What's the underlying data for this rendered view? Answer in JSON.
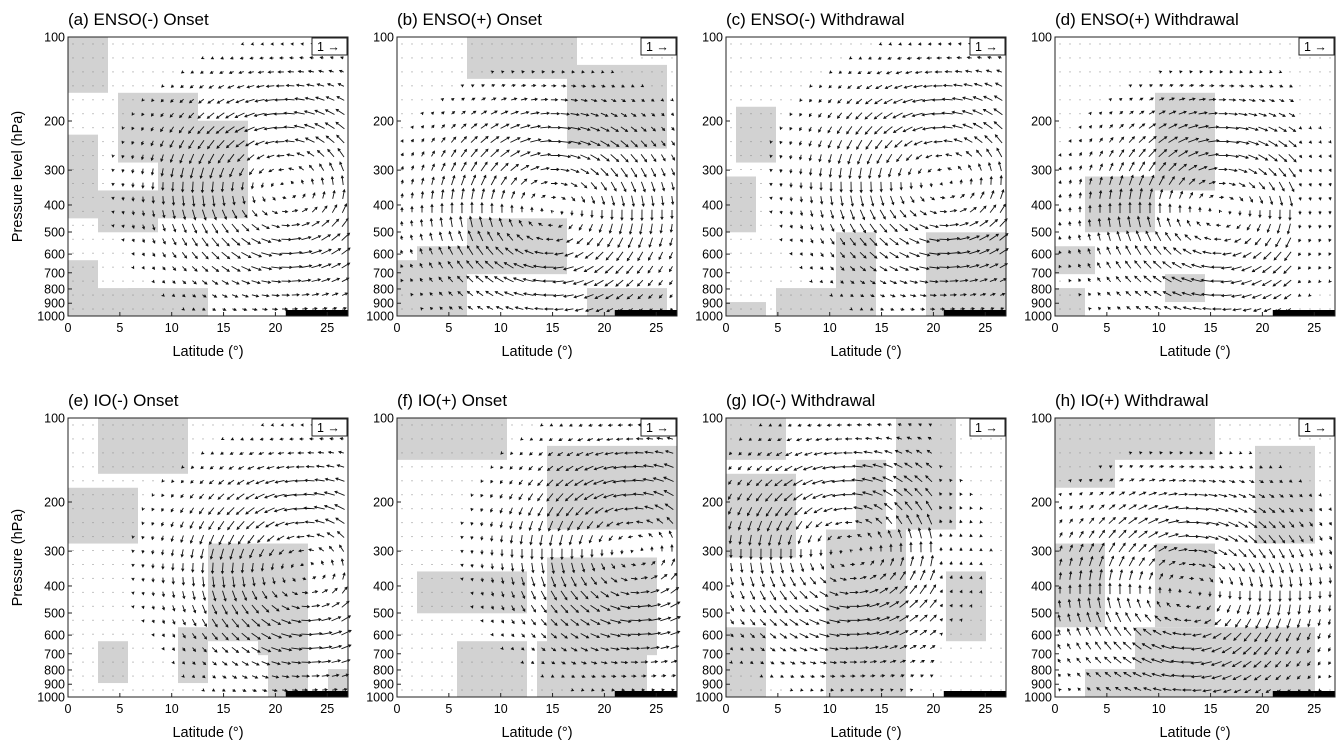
{
  "figure": {
    "x_tick_labels": [
      "0",
      "5",
      "10",
      "15",
      "20",
      "25"
    ],
    "y_tick_labels": [
      "100",
      "200",
      "300",
      "400",
      "500",
      "600",
      "700",
      "800",
      "900",
      "1000"
    ],
    "x_axis_label": "Latitude (°)",
    "y_axis_label": "Pressure level (hPa)",
    "y_axis_label_row2": "Pressure (hPa)",
    "reference_vector_label": "1 →",
    "colors": {
      "shading": "#d2d2d2",
      "vectors": "#111111",
      "land_bar": "#000000"
    }
  },
  "panels": [
    {
      "title": "(a) ENSO(-) Onset"
    },
    {
      "title": "(b) ENSO(+) Onset"
    },
    {
      "title": "(c) ENSO(-) Withdrawal"
    },
    {
      "title": "(d) ENSO(+) Withdrawal"
    },
    {
      "title": "(e) IO(-) Onset"
    },
    {
      "title": "(f) IO(+) Onset"
    },
    {
      "title": "(g) IO(-) Withdrawal"
    },
    {
      "title": "(h) IO(+) Withdrawal"
    }
  ],
  "chart_data": [
    {
      "type": "vector-field",
      "title": "(a) ENSO(-) Onset",
      "xlabel": "Latitude (°)",
      "ylabel": "Pressure level (hPa)",
      "xlim": [
        0,
        27
      ],
      "ylim": [
        1000,
        100
      ],
      "y_scale": "log",
      "xticks": [
        0,
        5,
        10,
        15,
        20,
        25
      ],
      "yticks": [
        100,
        200,
        300,
        400,
        500,
        600,
        700,
        800,
        900,
        1000
      ],
      "reference_vector": 1,
      "land_bar_lat": [
        21,
        27
      ],
      "circulation": {
        "center_lat": 21,
        "center_p": 350,
        "sense": "counterclockwise",
        "max_lat_extent": 27
      },
      "shaded_regions": [
        {
          "lat": [
            0,
            3
          ],
          "p": [
            100,
            150
          ]
        },
        {
          "lat": [
            5,
            12
          ],
          "p": [
            170,
            260
          ]
        },
        {
          "lat": [
            0,
            2
          ],
          "p": [
            250,
            420
          ]
        },
        {
          "lat": [
            3,
            8
          ],
          "p": [
            360,
            460
          ]
        },
        {
          "lat": [
            9,
            17
          ],
          "p": [
            200,
            430
          ]
        },
        {
          "lat": [
            0,
            2
          ],
          "p": [
            700,
            1000
          ]
        },
        {
          "lat": [
            3,
            8
          ],
          "p": [
            820,
            1000
          ]
        },
        {
          "lat": [
            6,
            13
          ],
          "p": [
            840,
            960
          ]
        }
      ]
    },
    {
      "type": "vector-field",
      "title": "(b) ENSO(+) Onset",
      "xlabel": "Latitude (°)",
      "ylabel": "",
      "xlim": [
        0,
        27
      ],
      "ylim": [
        1000,
        100
      ],
      "y_scale": "log",
      "xticks": [
        0,
        5,
        10,
        15,
        20,
        25
      ],
      "yticks": [
        100,
        200,
        300,
        400,
        500,
        600,
        700,
        800,
        900,
        1000
      ],
      "reference_vector": 1,
      "land_bar_lat": [
        21,
        27
      ],
      "circulation": {
        "center_lat": 15,
        "center_p": 420,
        "sense": "clockwise",
        "max_lat_extent": 27
      },
      "shaded_regions": [
        {
          "lat": [
            7,
            17
          ],
          "p": [
            100,
            130
          ]
        },
        {
          "lat": [
            17,
            26
          ],
          "p": [
            130,
            230
          ]
        },
        {
          "lat": [
            7,
            16
          ],
          "p": [
            480,
            700
          ]
        },
        {
          "lat": [
            2,
            6
          ],
          "p": [
            580,
            700
          ]
        },
        {
          "lat": [
            0,
            6
          ],
          "p": [
            700,
            1000
          ]
        },
        {
          "lat": [
            19,
            26
          ],
          "p": [
            800,
            1000
          ]
        }
      ]
    },
    {
      "type": "vector-field",
      "title": "(c) ENSO(-) Withdrawal",
      "xlabel": "Latitude (°)",
      "ylabel": "",
      "xlim": [
        0,
        27
      ],
      "ylim": [
        1000,
        100
      ],
      "y_scale": "log",
      "xticks": [
        0,
        5,
        10,
        15,
        20,
        25
      ],
      "yticks": [
        100,
        200,
        300,
        400,
        500,
        600,
        700,
        800,
        900,
        1000
      ],
      "reference_vector": 1,
      "land_bar_lat": [
        21,
        27
      ],
      "circulation": {
        "center_lat": 21,
        "center_p": 330,
        "sense": "counterclockwise",
        "max_lat_extent": 27
      },
      "shaded_regions": [
        {
          "lat": [
            1,
            4
          ],
          "p": [
            180,
            260
          ]
        },
        {
          "lat": [
            0,
            2
          ],
          "p": [
            350,
            450
          ]
        },
        {
          "lat": [
            11,
            14
          ],
          "p": [
            550,
            900
          ]
        },
        {
          "lat": [
            20,
            27
          ],
          "p": [
            520,
            900
          ]
        },
        {
          "lat": [
            5,
            9
          ],
          "p": [
            880,
            1000
          ]
        },
        {
          "lat": [
            0,
            3
          ],
          "p": [
            920,
            1000
          ]
        },
        {
          "lat": [
            10,
            14
          ],
          "p": [
            880,
            980
          ]
        }
      ]
    },
    {
      "type": "vector-field",
      "title": "(d) ENSO(+) Withdrawal",
      "xlabel": "Latitude (°)",
      "ylabel": "",
      "xlim": [
        0,
        27
      ],
      "ylim": [
        1000,
        100
      ],
      "y_scale": "log",
      "xticks": [
        0,
        5,
        10,
        15,
        20,
        25
      ],
      "yticks": [
        100,
        200,
        300,
        400,
        500,
        600,
        700,
        800,
        900,
        1000
      ],
      "reference_vector": 1,
      "land_bar_lat": [
        21,
        27
      ],
      "circulation": {
        "center_lat": 16,
        "center_p": 420,
        "sense": "clockwise",
        "max_lat_extent": 23
      },
      "shaded_regions": [
        {
          "lat": [
            10,
            15
          ],
          "p": [
            160,
            320
          ]
        },
        {
          "lat": [
            3,
            9
          ],
          "p": [
            320,
            460
          ]
        },
        {
          "lat": [
            0,
            3
          ],
          "p": [
            620,
            680
          ]
        },
        {
          "lat": [
            11,
            14
          ],
          "p": [
            720,
            800
          ]
        },
        {
          "lat": [
            0,
            2
          ],
          "p": [
            880,
            1000
          ]
        }
      ]
    },
    {
      "type": "vector-field",
      "title": "(e) IO(-) Onset",
      "xlabel": "Latitude (°)",
      "ylabel": "Pressure (hPa)",
      "xlim": [
        0,
        27
      ],
      "ylim": [
        1000,
        100
      ],
      "y_scale": "log",
      "xticks": [
        0,
        5,
        10,
        15,
        20,
        25
      ],
      "yticks": [
        100,
        200,
        300,
        400,
        500,
        600,
        700,
        800,
        900,
        1000
      ],
      "reference_vector": 1,
      "land_bar_lat": [
        21,
        27
      ],
      "circulation": {
        "center_lat": 23,
        "center_p": 350,
        "sense": "counterclockwise",
        "max_lat_extent": 27
      },
      "shaded_regions": [
        {
          "lat": [
            0,
            6
          ],
          "p": [
            180,
            260
          ]
        },
        {
          "lat": [
            3,
            11
          ],
          "p": [
            100,
            150
          ]
        },
        {
          "lat": [
            14,
            19
          ],
          "p": [
            300,
            600
          ]
        },
        {
          "lat": [
            19,
            23
          ],
          "p": [
            300,
            700
          ]
        },
        {
          "lat": [
            11,
            13
          ],
          "p": [
            600,
            800
          ]
        },
        {
          "lat": [
            3,
            5
          ],
          "p": [
            700,
            850
          ]
        },
        {
          "lat": [
            20,
            23
          ],
          "p": [
            700,
            900
          ]
        },
        {
          "lat": [
            26,
            27
          ],
          "p": [
            820,
            1000
          ]
        }
      ]
    },
    {
      "type": "vector-field",
      "title": "(f) IO(+) Onset",
      "xlabel": "Latitude (°)",
      "ylabel": "",
      "xlim": [
        0,
        27
      ],
      "ylim": [
        1000,
        100
      ],
      "y_scale": "log",
      "xticks": [
        0,
        5,
        10,
        15,
        20,
        25
      ],
      "yticks": [
        100,
        200,
        300,
        400,
        500,
        600,
        700,
        800,
        900,
        1000
      ],
      "reference_vector": 1,
      "land_bar_lat": [
        21,
        27
      ],
      "circulation": {
        "center_lat": 23,
        "center_p": 300,
        "sense": "counterclockwise",
        "max_lat_extent": 27
      },
      "shaded_regions": [
        {
          "lat": [
            0,
            10
          ],
          "p": [
            100,
            130
          ]
        },
        {
          "lat": [
            15,
            27
          ],
          "p": [
            130,
            250
          ]
        },
        {
          "lat": [
            2,
            12
          ],
          "p": [
            380,
            500
          ]
        },
        {
          "lat": [
            15,
            25
          ],
          "p": [
            350,
            700
          ]
        },
        {
          "lat": [
            6,
            12
          ],
          "p": [
            700,
            1000
          ]
        },
        {
          "lat": [
            14,
            21
          ],
          "p": [
            700,
            1000
          ]
        },
        {
          "lat": [
            21,
            24
          ],
          "p": [
            700,
            900
          ]
        }
      ]
    },
    {
      "type": "vector-field",
      "title": "(g) IO(-) Withdrawal",
      "xlabel": "Latitude (°)",
      "ylabel": "",
      "xlim": [
        0,
        27
      ],
      "ylim": [
        1000,
        100
      ],
      "y_scale": "log",
      "xticks": [
        0,
        5,
        10,
        15,
        20,
        25
      ],
      "yticks": [
        100,
        200,
        300,
        400,
        500,
        600,
        700,
        800,
        900,
        1000
      ],
      "reference_vector": 1,
      "land_bar_lat": [
        21,
        27
      ],
      "circulation": {
        "center_lat": 12,
        "center_p": 300,
        "sense": "counterclockwise",
        "max_lat_extent": 20
      },
      "shaded_regions": [
        {
          "lat": [
            0,
            5
          ],
          "p": [
            100,
            140
          ]
        },
        {
          "lat": [
            0,
            6
          ],
          "p": [
            160,
            300
          ]
        },
        {
          "lat": [
            10,
            17
          ],
          "p": [
            260,
            900
          ]
        },
        {
          "lat": [
            13,
            15
          ],
          "p": [
            150,
            260
          ]
        },
        {
          "lat": [
            0,
            3
          ],
          "p": [
            600,
            1000
          ]
        },
        {
          "lat": [
            17,
            22
          ],
          "p": [
            100,
            250
          ]
        },
        {
          "lat": [
            22,
            25
          ],
          "p": [
            380,
            600
          ]
        }
      ]
    },
    {
      "type": "vector-field",
      "title": "(h) IO(+) Withdrawal",
      "xlabel": "Latitude (°)",
      "ylabel": "",
      "xlim": [
        0,
        27
      ],
      "ylim": [
        1000,
        100
      ],
      "y_scale": "log",
      "xticks": [
        0,
        5,
        10,
        15,
        20,
        25
      ],
      "yticks": [
        100,
        200,
        300,
        400,
        500,
        600,
        700,
        800,
        900,
        1000
      ],
      "reference_vector": 1,
      "land_bar_lat": [
        21,
        27
      ],
      "circulation": {
        "center_lat": 13,
        "center_p": 420,
        "sense": "clockwise",
        "max_lat_extent": 27
      },
      "shaded_regions": [
        {
          "lat": [
            0,
            5
          ],
          "p": [
            100,
            160
          ]
        },
        {
          "lat": [
            5,
            15
          ],
          "p": [
            100,
            140
          ]
        },
        {
          "lat": [
            10,
            15
          ],
          "p": [
            300,
            560
          ]
        },
        {
          "lat": [
            0,
            4
          ],
          "p": [
            300,
            560
          ]
        },
        {
          "lat": [
            8,
            25
          ],
          "p": [
            600,
            1000
          ]
        },
        {
          "lat": [
            3,
            8
          ],
          "p": [
            800,
            1000
          ]
        },
        {
          "lat": [
            20,
            25
          ],
          "p": [
            130,
            280
          ]
        }
      ]
    }
  ]
}
